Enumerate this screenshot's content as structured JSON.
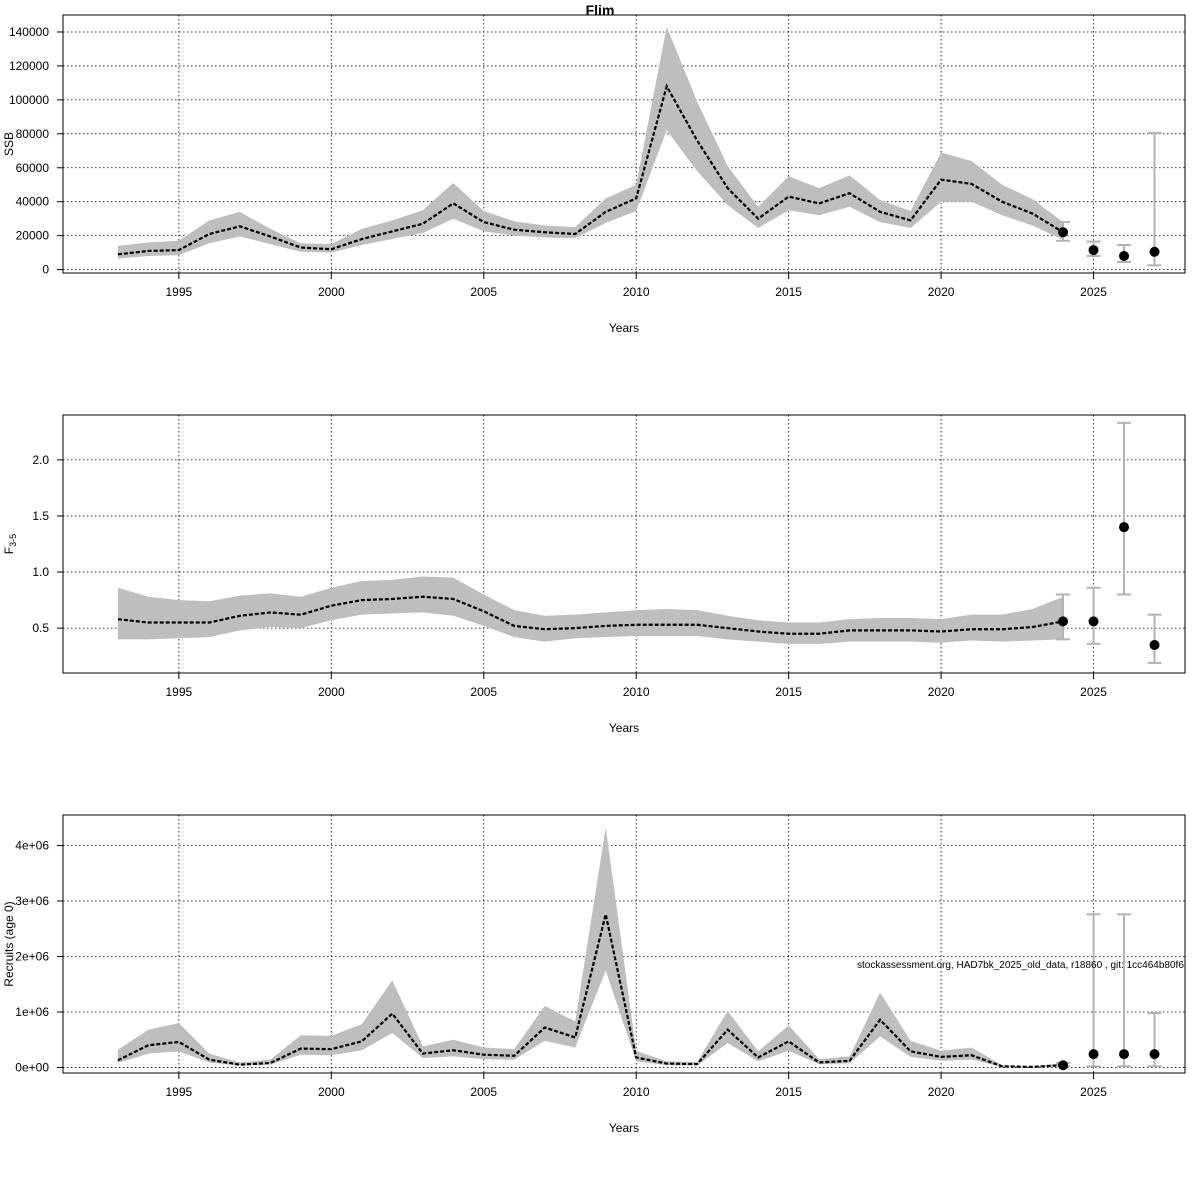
{
  "title": "Flim",
  "credit": "stockassessment.org, HAD7bk_2025_old_data, r18860 , git: 1cc464b80f6",
  "colors": {
    "band": "#bebebe",
    "line": "#000000",
    "errorbar": "#b3b3b3",
    "point": "#000000"
  },
  "chart_data": [
    {
      "type": "line",
      "ylabel": "SSB",
      "xlabel": "Years",
      "xlim": [
        1991.2,
        2028.0
      ],
      "ylim": [
        -2000,
        150000
      ],
      "xticks": [
        1995,
        2000,
        2005,
        2010,
        2015,
        2020,
        2025
      ],
      "xtick_labels": [
        "1995",
        "2000",
        "2005",
        "2010",
        "2015",
        "2020",
        "2025"
      ],
      "yticks": [
        0,
        20000,
        40000,
        60000,
        80000,
        100000,
        120000,
        140000
      ],
      "ytick_labels": [
        "0",
        "20000",
        "40000",
        "60000",
        "80000",
        "100000",
        "120000",
        "140000"
      ],
      "grid": true,
      "years": [
        1993,
        1994,
        1995,
        1996,
        1997,
        1998,
        1999,
        2000,
        2001,
        2002,
        2003,
        2004,
        2005,
        2006,
        2007,
        2008,
        2009,
        2010,
        2011,
        2012,
        2013,
        2014,
        2015,
        2016,
        2017,
        2018,
        2019,
        2020,
        2021,
        2022,
        2023,
        2024
      ],
      "estimate": [
        9000,
        11000,
        11500,
        21000,
        25500,
        19500,
        13000,
        12000,
        18000,
        22500,
        27000,
        39000,
        28000,
        23500,
        22000,
        21000,
        34000,
        42000,
        108000,
        76000,
        48000,
        30000,
        43000,
        39000,
        45000,
        34000,
        29000,
        53000,
        50500,
        40000,
        33000,
        22000
      ],
      "lower": [
        6500,
        8000,
        8500,
        15500,
        19500,
        15000,
        10500,
        10000,
        14500,
        18000,
        21500,
        30000,
        22500,
        20000,
        19000,
        18500,
        27500,
        34500,
        82000,
        58000,
        38000,
        24500,
        35000,
        32000,
        37000,
        28000,
        24500,
        40000,
        40000,
        32000,
        26000,
        17500
      ],
      "upper": [
        14000,
        16000,
        17000,
        29000,
        34000,
        24000,
        15500,
        15000,
        24000,
        29000,
        35000,
        51000,
        34500,
        28500,
        26000,
        25000,
        42000,
        50000,
        143000,
        99000,
        61000,
        37000,
        55000,
        48000,
        55500,
        41000,
        34500,
        69000,
        64000,
        50000,
        41500,
        28000
      ],
      "forecast": [
        {
          "year": 2024,
          "value": 22000,
          "lower": 17000,
          "upper": 28000
        },
        {
          "year": 2025,
          "value": 11500,
          "lower": 8000,
          "upper": 16500
        },
        {
          "year": 2026,
          "value": 8000,
          "lower": 4500,
          "upper": 14500
        },
        {
          "year": 2027,
          "value": 10500,
          "lower": 2500,
          "upper": 80500
        }
      ]
    },
    {
      "type": "line",
      "ylabel": "F",
      "ylabel_sub": "3-5",
      "xlabel": "Years",
      "xlim": [
        1991.2,
        2028.0
      ],
      "ylim": [
        0.1,
        2.4
      ],
      "xticks": [
        1995,
        2000,
        2005,
        2010,
        2015,
        2020,
        2025
      ],
      "xtick_labels": [
        "1995",
        "2000",
        "2005",
        "2010",
        "2015",
        "2020",
        "2025"
      ],
      "yticks": [
        0.5,
        1.0,
        1.5,
        2.0
      ],
      "ytick_labels": [
        "0.5",
        "1.0",
        "1.5",
        "2.0"
      ],
      "grid": true,
      "years": [
        1993,
        1994,
        1995,
        1996,
        1997,
        1998,
        1999,
        2000,
        2001,
        2002,
        2003,
        2004,
        2005,
        2006,
        2007,
        2008,
        2009,
        2010,
        2011,
        2012,
        2013,
        2014,
        2015,
        2016,
        2017,
        2018,
        2019,
        2020,
        2021,
        2022,
        2023,
        2024
      ],
      "estimate": [
        0.58,
        0.55,
        0.55,
        0.55,
        0.61,
        0.64,
        0.62,
        0.7,
        0.75,
        0.76,
        0.78,
        0.76,
        0.65,
        0.52,
        0.49,
        0.5,
        0.52,
        0.53,
        0.53,
        0.53,
        0.5,
        0.47,
        0.45,
        0.45,
        0.48,
        0.48,
        0.48,
        0.47,
        0.49,
        0.49,
        0.51,
        0.56
      ],
      "lower": [
        0.4,
        0.4,
        0.41,
        0.42,
        0.48,
        0.51,
        0.5,
        0.57,
        0.62,
        0.63,
        0.64,
        0.61,
        0.52,
        0.42,
        0.38,
        0.41,
        0.42,
        0.43,
        0.43,
        0.43,
        0.4,
        0.38,
        0.36,
        0.36,
        0.38,
        0.38,
        0.38,
        0.37,
        0.39,
        0.38,
        0.39,
        0.4
      ],
      "upper": [
        0.86,
        0.78,
        0.75,
        0.74,
        0.79,
        0.81,
        0.78,
        0.86,
        0.92,
        0.93,
        0.96,
        0.95,
        0.8,
        0.66,
        0.61,
        0.62,
        0.64,
        0.66,
        0.67,
        0.66,
        0.61,
        0.57,
        0.55,
        0.55,
        0.58,
        0.59,
        0.59,
        0.58,
        0.62,
        0.62,
        0.67,
        0.78
      ],
      "forecast": [
        {
          "year": 2024,
          "value": 0.56,
          "lower": 0.4,
          "upper": 0.8
        },
        {
          "year": 2025,
          "value": 0.56,
          "lower": 0.36,
          "upper": 0.86
        },
        {
          "year": 2026,
          "value": 1.4,
          "lower": 0.8,
          "upper": 2.33
        },
        {
          "year": 2027,
          "value": 0.35,
          "lower": 0.19,
          "upper": 0.62
        }
      ]
    },
    {
      "type": "line",
      "ylabel": "Recruits (age 0)",
      "xlabel": "Years",
      "xlim": [
        1991.2,
        2028.0
      ],
      "ylim": [
        -100000,
        4550000
      ],
      "xticks": [
        1995,
        2000,
        2005,
        2010,
        2015,
        2020,
        2025
      ],
      "xtick_labels": [
        "1995",
        "2000",
        "2005",
        "2010",
        "2015",
        "2020",
        "2025"
      ],
      "yticks": [
        0,
        1000000,
        2000000,
        3000000,
        4000000
      ],
      "ytick_labels": [
        "0e+00",
        "1e+06",
        "2e+06",
        "3e+06",
        "4e+06"
      ],
      "grid": true,
      "years": [
        1993,
        1994,
        1995,
        1996,
        1997,
        1998,
        1999,
        2000,
        2001,
        2002,
        2003,
        2004,
        2005,
        2006,
        2007,
        2008,
        2009,
        2010,
        2011,
        2012,
        2013,
        2014,
        2015,
        2016,
        2017,
        2018,
        2019,
        2020,
        2021,
        2022,
        2023,
        2024
      ],
      "estimate": [
        130000,
        400000,
        460000,
        140000,
        50000,
        80000,
        340000,
        330000,
        470000,
        970000,
        250000,
        310000,
        230000,
        210000,
        720000,
        540000,
        2760000,
        180000,
        70000,
        60000,
        680000,
        180000,
        470000,
        90000,
        120000,
        860000,
        290000,
        190000,
        220000,
        20000,
        10000,
        40000
      ],
      "lower": [
        80000,
        250000,
        290000,
        90000,
        30000,
        50000,
        230000,
        220000,
        310000,
        620000,
        170000,
        200000,
        150000,
        140000,
        480000,
        360000,
        1750000,
        110000,
        40000,
        35000,
        440000,
        110000,
        300000,
        55000,
        75000,
        560000,
        190000,
        120000,
        140000,
        10000,
        5000,
        20000
      ],
      "upper": [
        320000,
        680000,
        800000,
        250000,
        90000,
        140000,
        580000,
        570000,
        780000,
        1570000,
        380000,
        500000,
        360000,
        330000,
        1110000,
        830000,
        4330000,
        300000,
        110000,
        95000,
        1020000,
        290000,
        760000,
        150000,
        200000,
        1350000,
        480000,
        300000,
        360000,
        40000,
        20000,
        80000
      ],
      "forecast": [
        {
          "year": 2024,
          "value": 40000,
          "lower": 20000,
          "upper": 80000
        },
        {
          "year": 2025,
          "value": 240000,
          "lower": 20000,
          "upper": 2760000
        },
        {
          "year": 2026,
          "value": 240000,
          "lower": 20000,
          "upper": 2760000
        },
        {
          "year": 2027,
          "value": 240000,
          "lower": 20000,
          "upper": 980000
        }
      ]
    }
  ]
}
